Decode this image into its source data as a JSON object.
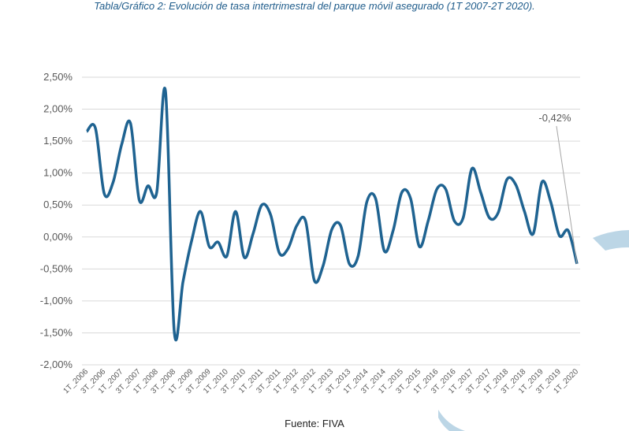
{
  "title": "Tabla/Gráfico 2: Evolución de tasa intertrimestral del parque móvil asegurado (1T 2007-2T 2020).",
  "source": "Fuente: FIVA",
  "colors": {
    "line": "#1f6391",
    "grid": "#d9d9d9",
    "text": "#595959",
    "decor": "#bcd6e6"
  },
  "chart_data": {
    "type": "line",
    "x_ticks": [
      "1T_2006",
      "3T_2006",
      "1T_2007",
      "3T_2007",
      "1T_2008",
      "3T_2008",
      "1T_2009",
      "3T_2009",
      "1T_2010",
      "3T_2010",
      "1T_2011",
      "3T_2011",
      "1T_2012",
      "3T_2012",
      "1T_2013",
      "3T_2013",
      "1T_2014",
      "3T_2014",
      "1T_2015",
      "3T_2015",
      "1T_2016",
      "3T_2016",
      "1T_2017",
      "3T_2017",
      "1T_2018",
      "3T_2018",
      "1T_2019",
      "3T_2019",
      "1T_2020"
    ],
    "y_ticks": [
      "2,50%",
      "2,00%",
      "1,50%",
      "1,00%",
      "0,50%",
      "0,00%",
      "-0,50%",
      "-1,00%",
      "-1,50%",
      "-2,00%"
    ],
    "ylim": [
      -2.0,
      2.5
    ],
    "grid": true,
    "values": [
      1.65,
      1.7,
      0.68,
      0.85,
      1.45,
      1.78,
      0.58,
      0.8,
      0.7,
      2.28,
      -1.48,
      -0.7,
      -0.05,
      0.4,
      -0.15,
      -0.08,
      -0.3,
      0.4,
      -0.32,
      0.05,
      0.5,
      0.35,
      -0.25,
      -0.18,
      0.18,
      0.25,
      -0.68,
      -0.45,
      0.12,
      0.18,
      -0.42,
      -0.3,
      0.55,
      0.6,
      -0.22,
      0.1,
      0.7,
      0.6,
      -0.15,
      0.25,
      0.75,
      0.75,
      0.25,
      0.3,
      1.07,
      0.7,
      0.3,
      0.38,
      0.9,
      0.82,
      0.4,
      0.05,
      0.86,
      0.55,
      0.02,
      0.1,
      -0.42
    ],
    "annotation": {
      "label": "-0,42%",
      "point_index": 56
    }
  }
}
